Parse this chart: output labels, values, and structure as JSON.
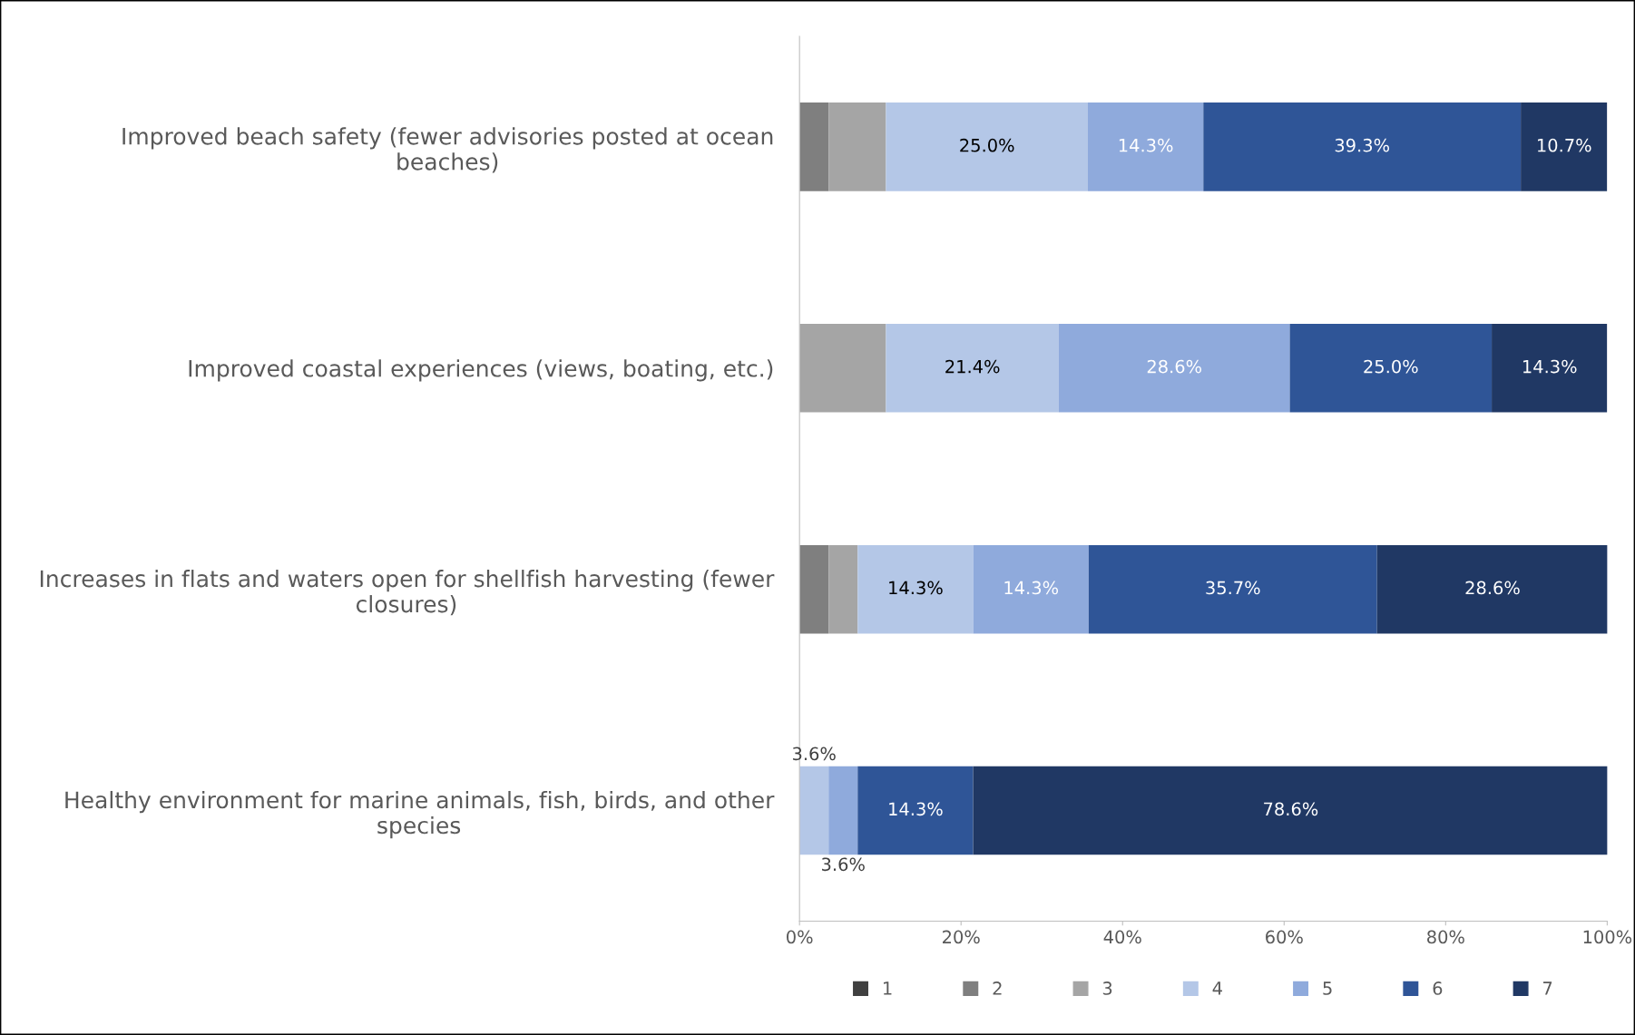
{
  "chart_data": {
    "type": "bar",
    "orientation": "horizontal",
    "stacked": true,
    "categories": [
      "Improved beach safety (fewer advisories posted at ocean beaches)",
      "Improved coastal experiences (views, boating, etc.)",
      "Increases in flats and waters open for shellfish harvesting (fewer closures)",
      "Healthy environment for marine animals, fish, birds, and other species"
    ],
    "series": [
      {
        "name": "1",
        "color": "#404040",
        "values": [
          null,
          null,
          null,
          null
        ],
        "value_labels": [
          null,
          null,
          null,
          null
        ]
      },
      {
        "name": "2",
        "color": "#7f7f7f",
        "values": [
          3.6,
          null,
          3.6,
          null
        ],
        "value_labels": [
          null,
          null,
          null,
          null
        ]
      },
      {
        "name": "3",
        "color": "#a5a5a5",
        "values": [
          7.1,
          10.7,
          3.6,
          null
        ],
        "value_labels": [
          null,
          null,
          null,
          null
        ]
      },
      {
        "name": "4",
        "color": "#b4c7e7",
        "values": [
          25.0,
          21.4,
          14.3,
          3.6
        ],
        "value_labels": [
          "25.0%",
          "21.4%",
          "14.3%",
          "3.6%"
        ]
      },
      {
        "name": "5",
        "color": "#8faadc",
        "values": [
          14.3,
          28.6,
          14.3,
          3.6
        ],
        "value_labels": [
          "14.3%",
          "28.6%",
          "14.3%",
          "3.6%"
        ]
      },
      {
        "name": "6",
        "color": "#2f5597",
        "values": [
          39.3,
          25.0,
          35.7,
          14.3
        ],
        "value_labels": [
          "39.3%",
          "25.0%",
          "35.7%",
          "14.3%"
        ]
      },
      {
        "name": "7",
        "color": "#203864",
        "values": [
          10.7,
          14.3,
          28.6,
          78.6
        ],
        "value_labels": [
          "10.7%",
          "14.3%",
          "28.6%",
          "78.6%"
        ]
      }
    ],
    "xlim": [
      0,
      100
    ],
    "xticks": [
      {
        "value": 0,
        "label": "0%"
      },
      {
        "value": 20,
        "label": "20%"
      },
      {
        "value": 40,
        "label": "40%"
      },
      {
        "value": 60,
        "label": "60%"
      },
      {
        "value": 80,
        "label": "80%"
      },
      {
        "value": 100,
        "label": "100%"
      }
    ],
    "grid": false,
    "legend": "bottom"
  }
}
